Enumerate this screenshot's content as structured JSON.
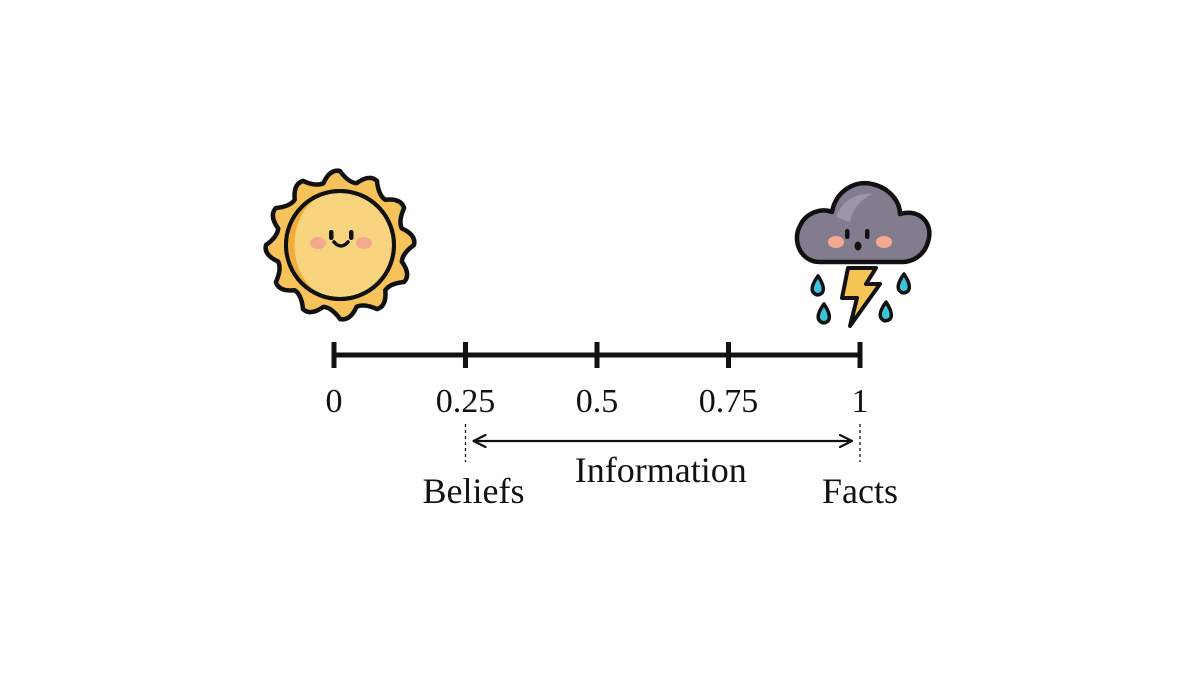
{
  "scale": {
    "min": 0,
    "max": 1,
    "ticks": [
      {
        "value": 0,
        "label": "0"
      },
      {
        "value": 0.25,
        "label": "0.25"
      },
      {
        "value": 0.5,
        "label": "0.5"
      },
      {
        "value": 0.75,
        "label": "0.75"
      },
      {
        "value": 1,
        "label": "1"
      }
    ]
  },
  "left_endpoint": {
    "icon": "smiling-sun-icon"
  },
  "right_endpoint": {
    "icon": "storm-cloud-icon"
  },
  "span": {
    "from": 0.25,
    "to": 1,
    "label": "Information",
    "start_label": "Beliefs",
    "end_label": "Facts"
  },
  "colors": {
    "line": "#111111",
    "sun_fill": "#f6c25a",
    "sun_inner": "#f9d47e",
    "sun_shade": "#f0ad3c",
    "cheek": "#f2a98e",
    "cloud_fill": "#827c8e",
    "cloud_light": "#9b96a6",
    "bolt_fill": "#f4c454",
    "rain_fill": "#3ec4da"
  }
}
